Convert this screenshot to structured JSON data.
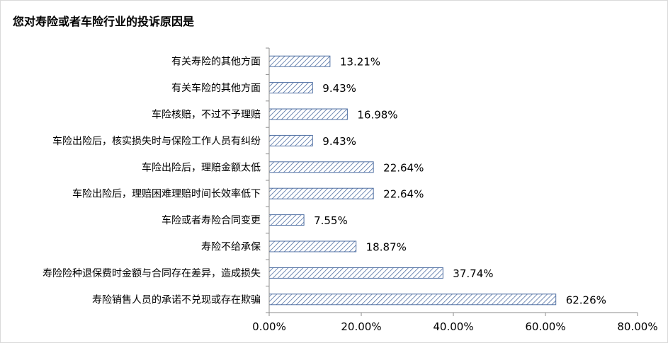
{
  "chart_data": {
    "type": "bar",
    "orientation": "horizontal",
    "title": "您对寿险或者车险行业的投诉原因是",
    "categories": [
      "有关寿险的其他方面",
      "有关车险的其他方面",
      "车险核赔，不过不予理赔",
      "车险出险后，核实损失时与保险工作人员有纠纷",
      "车险出险后，理赔金额太低",
      "车险出险后，理赔困难理赔时间长效率低下",
      "车险或者寿险合同变更",
      "寿险不给承保",
      "寿险险种退保费时金额与合同存在差异，造成损失",
      "寿险销售人员的承诺不兑现或存在欺骗"
    ],
    "values": [
      13.21,
      9.43,
      16.98,
      9.43,
      22.64,
      22.64,
      7.55,
      18.87,
      37.74,
      62.26
    ],
    "value_labels": [
      "13.21%",
      "9.43%",
      "16.98%",
      "9.43%",
      "22.64%",
      "22.64%",
      "7.55%",
      "18.87%",
      "37.74%",
      "62.26%"
    ],
    "xlim": [
      0,
      80
    ],
    "xticks": [
      0,
      20,
      40,
      60,
      80
    ],
    "xtick_labels": [
      "0.00%",
      "20.00%",
      "40.00%",
      "60.00%",
      "80.00%"
    ],
    "grid": false,
    "legend": "none",
    "bar_fill": "hatched",
    "colors": {
      "bar_outline": "#4f6fa3",
      "bar_hatch": "#4f6fa3",
      "axis": "#8c8c8c",
      "text": "#000000",
      "frame": "#d9d9d9"
    }
  }
}
